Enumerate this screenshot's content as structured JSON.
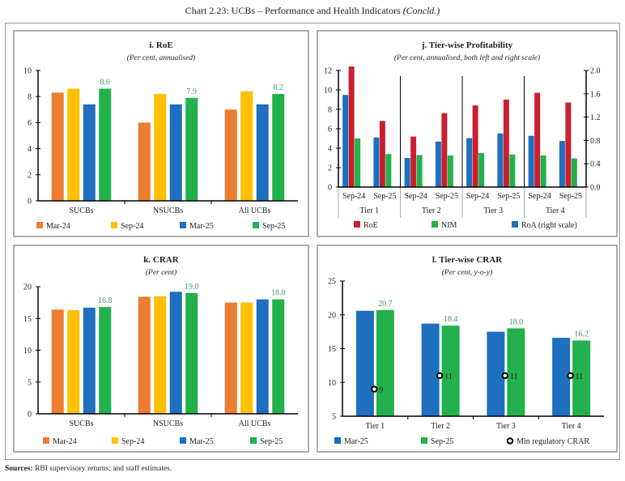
{
  "title": {
    "main": "Chart 2.23: UCBs – Performance and Health Indicators",
    "suffix": "(Concld.)"
  },
  "sources": {
    "label": "Sources:",
    "text": " RBI supervisory returns; and staff estimates."
  },
  "colors": {
    "Mar-24": "#ED7D31",
    "Sep-24": "#FFC000",
    "Mar-25": "#1F6FBF",
    "Sep-25": "#22B14C",
    "RoE": "#C8202F",
    "NIM": "#22B14C",
    "RoA": "#1F6FBF",
    "label_green": "#3A9A5A"
  },
  "chart_data": [
    {
      "id": "i",
      "type": "bar",
      "title": "i. RoE",
      "subtitle": "(Per cent, annualised)",
      "categories": [
        "SUCBs",
        "NSUCBs",
        "All UCBs"
      ],
      "ylim": [
        0,
        10
      ],
      "yticks": [
        0,
        2,
        4,
        6,
        8,
        10
      ],
      "series": [
        {
          "name": "Mar-24",
          "values": [
            8.3,
            6.0,
            7.0
          ]
        },
        {
          "name": "Sep-24",
          "values": [
            8.6,
            8.2,
            8.4
          ]
        },
        {
          "name": "Mar-25",
          "values": [
            7.4,
            7.4,
            7.4
          ]
        },
        {
          "name": "Sep-25",
          "values": [
            8.6,
            7.9,
            8.2
          ],
          "labels": [
            "8.6",
            "7.9",
            "8.2"
          ]
        }
      ],
      "legend": "bottom"
    },
    {
      "id": "j",
      "type": "bar",
      "title": "j. Tier-wise Profitability",
      "subtitle": "(Per cent, annualised, both left and right scale)",
      "groups": [
        "Tier 1",
        "Tier 2",
        "Tier 3",
        "Tier 4"
      ],
      "subcategories": [
        "Sep-24",
        "Sep-25"
      ],
      "ylim": [
        0,
        12
      ],
      "yticks": [
        0,
        2,
        4,
        6,
        8,
        10,
        12
      ],
      "y2lim": [
        0,
        2.0
      ],
      "y2ticks": [
        "0.0",
        "0.4",
        "0.8",
        "1.2",
        "1.6",
        "2.0"
      ],
      "series": [
        {
          "name": "RoA (right scale)",
          "key": "RoA",
          "axis": "right",
          "values": [
            1.58,
            0.85,
            0.5,
            0.78,
            0.84,
            0.92,
            0.88,
            0.79
          ]
        },
        {
          "name": "RoE",
          "key": "RoE",
          "axis": "left",
          "values": [
            12.4,
            6.8,
            5.2,
            7.6,
            8.4,
            9.0,
            9.7,
            8.7
          ]
        },
        {
          "name": "NIM",
          "key": "NIM",
          "axis": "left",
          "values": [
            5.0,
            3.4,
            3.3,
            3.25,
            3.5,
            3.35,
            3.25,
            2.95
          ]
        }
      ],
      "legend_order": [
        "RoE",
        "NIM",
        "RoA (right scale)"
      ],
      "legend": "bottom"
    },
    {
      "id": "k",
      "type": "bar",
      "title": "k. CRAR",
      "subtitle": "(Per cent)",
      "categories": [
        "SUCBs",
        "NSUCBs",
        "All UCBs"
      ],
      "ylim": [
        0,
        20
      ],
      "yticks": [
        0,
        5,
        10,
        15,
        20
      ],
      "series": [
        {
          "name": "Mar-24",
          "values": [
            16.4,
            18.4,
            17.5
          ]
        },
        {
          "name": "Sep-24",
          "values": [
            16.3,
            18.5,
            17.5
          ]
        },
        {
          "name": "Mar-25",
          "values": [
            16.7,
            19.2,
            18.0
          ]
        },
        {
          "name": "Sep-25",
          "values": [
            16.8,
            19.0,
            18.0
          ],
          "labels": [
            "16.8",
            "19.0",
            "18.0"
          ]
        }
      ],
      "legend": "bottom"
    },
    {
      "id": "l",
      "type": "bar",
      "title": "l. Tier-wise CRAR",
      "subtitle": "(Per cent, y-o-y)",
      "categories": [
        "Tier 1",
        "Tier 2",
        "Tier 3",
        "Tier 4"
      ],
      "ylim": [
        5,
        25
      ],
      "yticks": [
        5,
        10,
        15,
        20,
        25
      ],
      "series": [
        {
          "name": "Mar-25",
          "values": [
            20.6,
            18.7,
            17.5,
            16.6
          ]
        },
        {
          "name": "Sep-25",
          "values": [
            20.7,
            18.4,
            18.0,
            16.2
          ],
          "labels": [
            "20.7",
            "18.4",
            "18.0",
            "16.2"
          ]
        }
      ],
      "markers": {
        "name": "Min regulatory CRAR",
        "values": [
          9,
          11,
          11,
          11
        ],
        "labels": [
          "9",
          "11",
          "11",
          "11"
        ]
      },
      "legend": "bottom"
    }
  ]
}
